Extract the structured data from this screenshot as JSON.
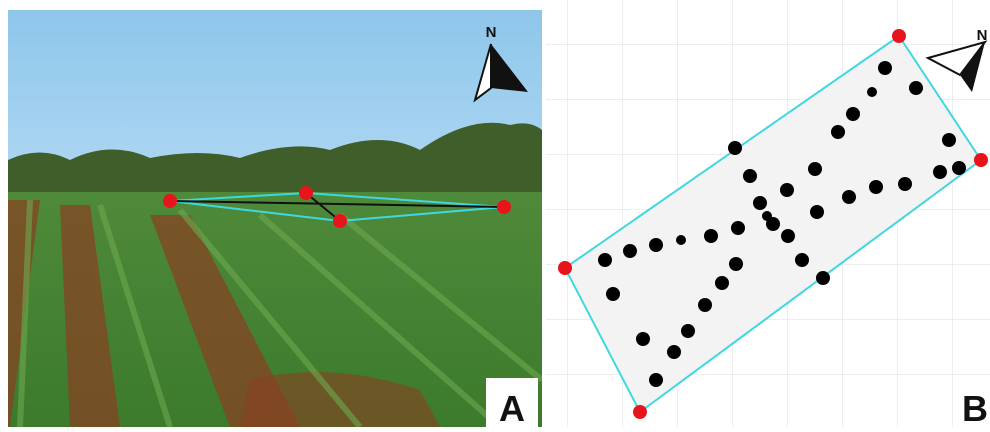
{
  "panels": [
    {
      "label": "A",
      "north": "N"
    },
    {
      "label": "B",
      "north": "N"
    }
  ]
}
